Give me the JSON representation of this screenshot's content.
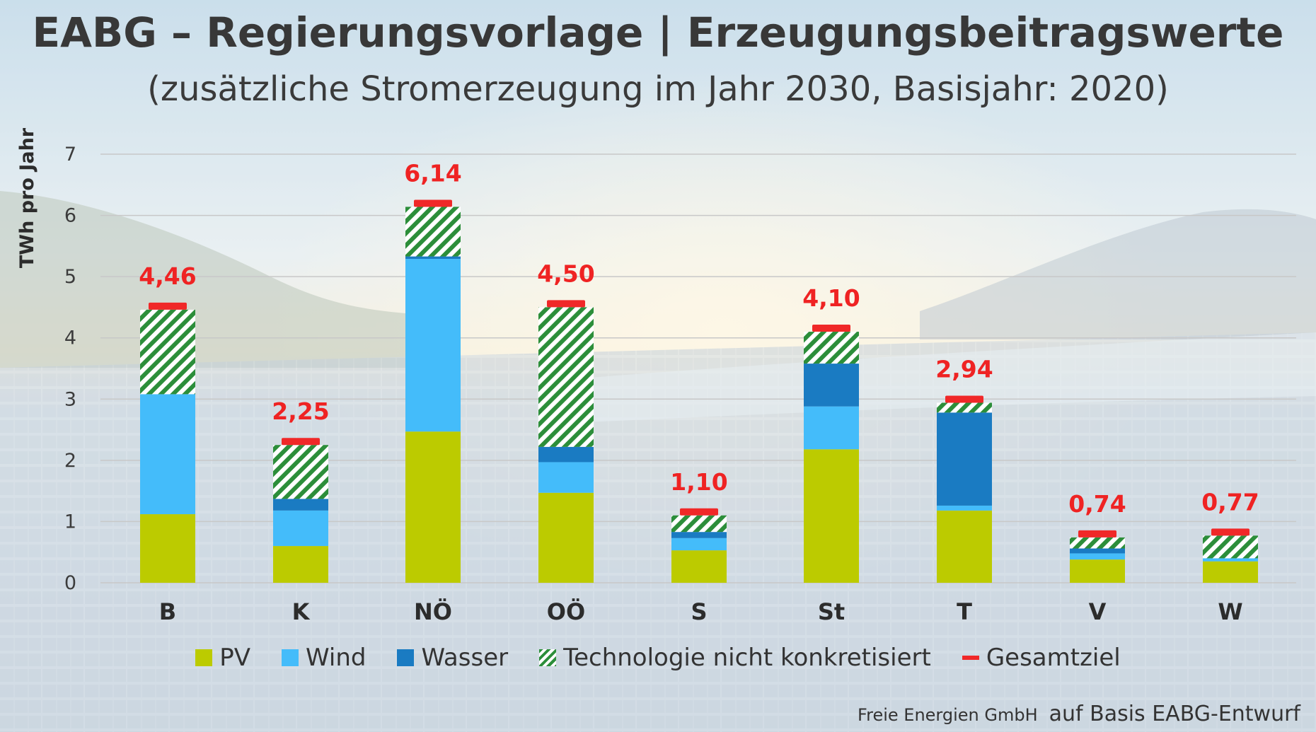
{
  "title": "EABG – Regierungsvorlage | Erzeugungsbeitragswerte",
  "subtitle": "(zusätzliche Stromerzeugung im Jahr 2030, Basisjahr: 2020)",
  "credit": {
    "company": "Freie Energien GmbH",
    "source": "auf Basis EABG-Entwurf"
  },
  "colors": {
    "pv": "#bccb00",
    "wind": "#44bcfa",
    "wasser": "#1a7bc2",
    "hatch": "#2c8e3a",
    "gesamtziel": "#f02828"
  },
  "legend": [
    {
      "key": "pv",
      "label": "PV"
    },
    {
      "key": "wind",
      "label": "Wind"
    },
    {
      "key": "wasser",
      "label": "Wasser"
    },
    {
      "key": "unspecified",
      "label": "Technologie nicht konkretisiert"
    },
    {
      "key": "gesamtziel",
      "label": "Gesamtziel"
    }
  ],
  "chart_data": {
    "type": "bar",
    "stacked": true,
    "ylabel": "TWh pro Jahr",
    "ylim": [
      0,
      7
    ],
    "yticks": [
      0,
      1,
      2,
      3,
      4,
      5,
      6,
      7
    ],
    "grid": true,
    "legend_position": "bottom",
    "categories": [
      "B",
      "K",
      "NÖ",
      "OÖ",
      "S",
      "St",
      "T",
      "V",
      "W"
    ],
    "series": [
      {
        "name": "PV",
        "values": [
          1.12,
          0.6,
          2.47,
          1.47,
          0.53,
          2.18,
          1.18,
          0.38,
          0.35
        ]
      },
      {
        "name": "Wind",
        "values": [
          1.96,
          0.58,
          2.82,
          0.5,
          0.2,
          0.7,
          0.08,
          0.1,
          0.05
        ]
      },
      {
        "name": "Wasser",
        "values": [
          0,
          0.19,
          0.04,
          0.25,
          0.1,
          0.7,
          1.52,
          0.08,
          0
        ]
      },
      {
        "name": "Technologie nicht konkretisiert",
        "values": [
          1.38,
          0.88,
          0.81,
          2.28,
          0.27,
          0.52,
          0.16,
          0.18,
          0.37
        ]
      }
    ],
    "totals": {
      "name": "Gesamtziel",
      "values": [
        4.46,
        2.25,
        6.14,
        4.5,
        1.1,
        4.1,
        2.94,
        0.74,
        0.77
      ],
      "labels": [
        "4,46",
        "2,25",
        "6,14",
        "4,50",
        "1,10",
        "4,10",
        "2,94",
        "0,74",
        "0,77"
      ]
    }
  }
}
